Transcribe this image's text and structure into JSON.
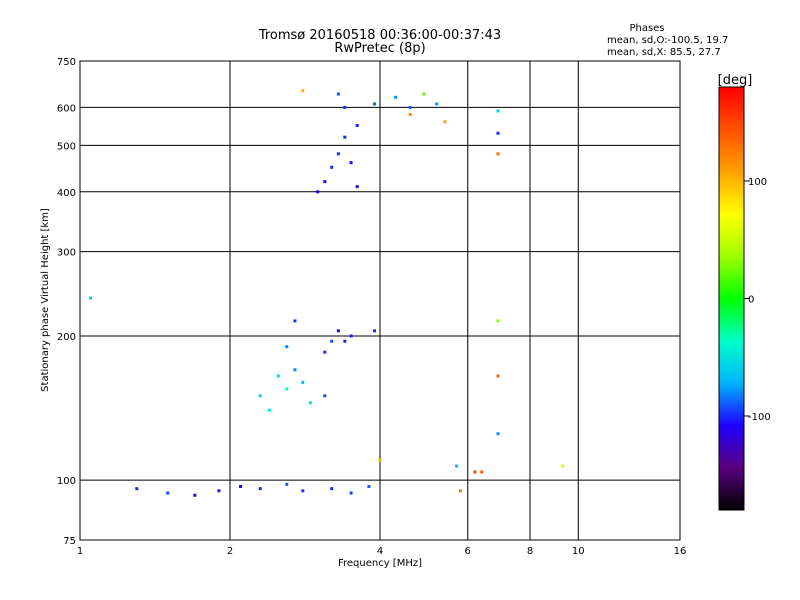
{
  "chart_data": {
    "type": "scatter",
    "title": "Tromsø 20160518 00:36:00-00:37:43",
    "subtitle": "RwPretec (8p)",
    "xlabel": "Frequency [MHz]",
    "ylabel": "Stationary phase Virtual Height [km]",
    "x_scale": "log",
    "y_scale": "log",
    "xlim": [
      1,
      16
    ],
    "ylim": [
      75,
      750
    ],
    "x_ticks": [
      1,
      2,
      4,
      6,
      8,
      10,
      16
    ],
    "x_tick_labels": [
      "1",
      "2",
      "4",
      "6",
      "8",
      "10",
      "16"
    ],
    "y_ticks": [
      75,
      100,
      200,
      300,
      400,
      500,
      600,
      750
    ],
    "y_tick_labels": [
      "75",
      "100",
      "200",
      "300",
      "400",
      "500",
      "600",
      "750"
    ],
    "grid": true,
    "legend": {
      "heading": "Phases",
      "lines": [
        "mean, sd,O:-100.5, 19.7",
        "mean, sd,X: 85.5, 27.7"
      ],
      "placement": "top-right"
    },
    "colorbar": {
      "label": "[deg]",
      "range": [
        -180,
        180
      ],
      "ticks": [
        100,
        0,
        -100
      ],
      "tick_labels": [
        "100",
        "0",
        "-100"
      ],
      "colors": [
        "#000000",
        "#5a0080",
        "#2000ff",
        "#00b4ff",
        "#00ffc8",
        "#00ff00",
        "#a0ff00",
        "#ffff00",
        "#ffa000",
        "#ff5000",
        "#ff0000"
      ]
    },
    "series": [
      {
        "values": [
          [
            1.3,
            96,
            -100
          ],
          [
            1.5,
            94,
            -95
          ],
          [
            1.7,
            93,
            -110
          ],
          [
            1.9,
            95,
            -105
          ],
          [
            2.1,
            97,
            -110
          ],
          [
            2.3,
            96,
            -100
          ],
          [
            2.6,
            98,
            -90
          ],
          [
            2.8,
            95,
            -100
          ],
          [
            3.2,
            96,
            -100
          ],
          [
            3.5,
            94,
            -95
          ],
          [
            3.8,
            97,
            -90
          ]
        ]
      },
      {
        "values": [
          [
            2.3,
            150,
            -60
          ],
          [
            2.4,
            140,
            -40
          ],
          [
            2.5,
            165,
            -50
          ],
          [
            2.6,
            155,
            -30
          ],
          [
            2.7,
            170,
            -80
          ],
          [
            2.8,
            160,
            -70
          ],
          [
            2.6,
            190,
            -80
          ],
          [
            2.7,
            215,
            -100
          ],
          [
            2.9,
            145,
            -50
          ],
          [
            3.1,
            150,
            -90
          ]
        ]
      },
      {
        "values": [
          [
            3.1,
            185,
            -100
          ],
          [
            3.2,
            195,
            -90
          ],
          [
            3.3,
            205,
            -110
          ],
          [
            3.4,
            195,
            -100
          ],
          [
            3.5,
            200,
            -100
          ],
          [
            3.9,
            205,
            -100
          ]
        ]
      },
      {
        "values": [
          [
            3.0,
            400,
            -120
          ],
          [
            3.1,
            420,
            -110
          ],
          [
            3.2,
            450,
            -100
          ],
          [
            3.3,
            480,
            -100
          ],
          [
            3.4,
            520,
            -100
          ],
          [
            3.5,
            460,
            -110
          ],
          [
            3.6,
            410,
            -120
          ],
          [
            3.4,
            600,
            -100
          ],
          [
            3.3,
            640,
            -90
          ],
          [
            3.6,
            550,
            -100
          ]
        ]
      },
      {
        "values": [
          [
            3.9,
            610,
            -90
          ],
          [
            4.3,
            630,
            -80
          ],
          [
            4.6,
            600,
            -90
          ],
          [
            4.9,
            640,
            20
          ],
          [
            5.2,
            610,
            -80
          ]
        ]
      },
      {
        "values": [
          [
            2.8,
            650,
            100
          ],
          [
            4.6,
            580,
            120
          ],
          [
            5.4,
            560,
            110
          ],
          [
            6.9,
            480,
            130
          ],
          [
            6.9,
            590,
            -60
          ],
          [
            6.9,
            530,
            -100
          ],
          [
            6.9,
            215,
            30
          ],
          [
            6.9,
            165,
            140
          ],
          [
            6.9,
            125,
            -80
          ],
          [
            6.4,
            104,
            140
          ],
          [
            6.2,
            104,
            150
          ],
          [
            5.7,
            107,
            -70
          ],
          [
            5.8,
            95,
            130
          ],
          [
            9.3,
            107,
            60
          ],
          [
            1.05,
            240,
            -60
          ],
          [
            4.0,
            110,
            100
          ]
        ]
      }
    ]
  }
}
